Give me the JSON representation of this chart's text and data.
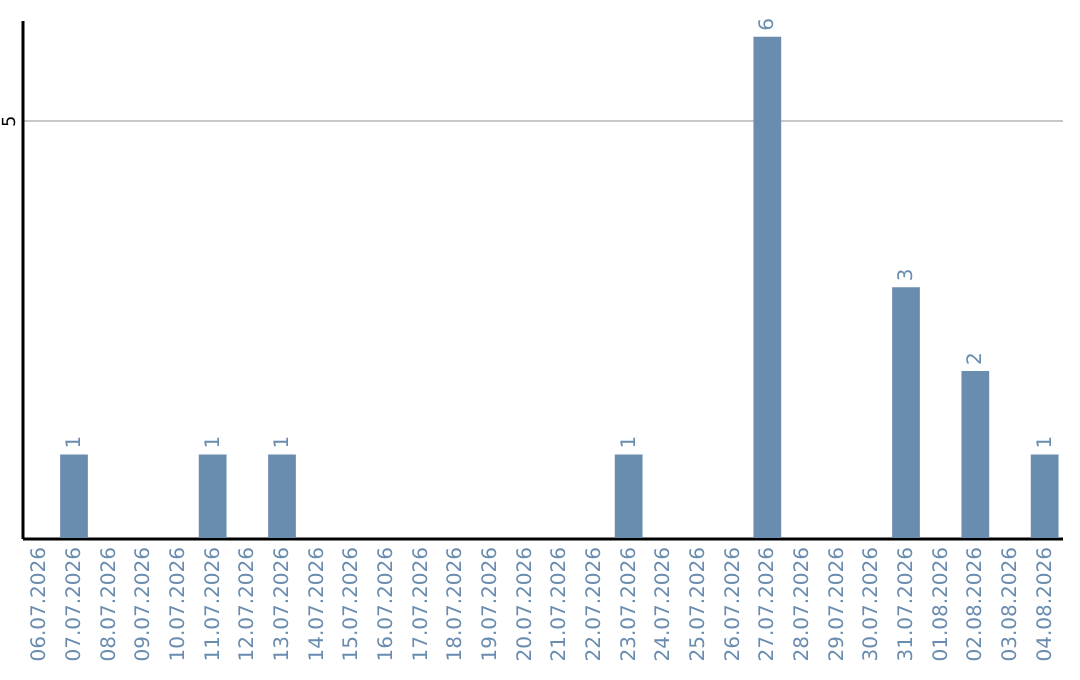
{
  "chart_data": {
    "type": "bar",
    "categories": [
      "06.07.2026",
      "07.07.2026",
      "08.07.2026",
      "09.07.2026",
      "10.07.2026",
      "11.07.2026",
      "12.07.2026",
      "13.07.2026",
      "14.07.2026",
      "15.07.2026",
      "16.07.2026",
      "17.07.2026",
      "18.07.2026",
      "19.07.2026",
      "20.07.2026",
      "21.07.2026",
      "22.07.2026",
      "23.07.2026",
      "24.07.2026",
      "25.07.2026",
      "26.07.2026",
      "27.07.2026",
      "28.07.2026",
      "29.07.2026",
      "30.07.2026",
      "31.07.2026",
      "01.08.2026",
      "02.08.2026",
      "03.08.2026",
      "04.08.2026"
    ],
    "values": [
      0,
      1,
      0,
      0,
      0,
      1,
      0,
      1,
      0,
      0,
      0,
      0,
      0,
      0,
      0,
      0,
      0,
      1,
      0,
      0,
      0,
      6,
      0,
      0,
      0,
      3,
      0,
      2,
      0,
      1
    ],
    "value_labels": [
      null,
      "1",
      null,
      null,
      null,
      "1",
      null,
      "1",
      null,
      null,
      null,
      null,
      null,
      null,
      null,
      null,
      null,
      "1",
      null,
      null,
      null,
      "6",
      null,
      null,
      null,
      "3",
      null,
      "2",
      null,
      "1"
    ],
    "color": "#6a8caf",
    "ylim": [
      0,
      6.2
    ],
    "yticks": [
      {
        "value": 0,
        "label": null
      },
      5
    ],
    "grid": "y"
  }
}
